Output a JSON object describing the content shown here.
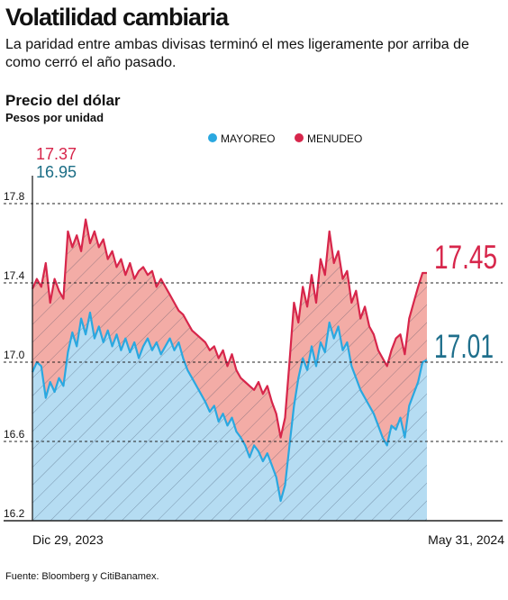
{
  "header": {
    "title": "Volatilidad cambiaria",
    "subtitle": "La paridad entre ambas divisas terminó el mes ligeramente por arriba de como cerró el año pasado."
  },
  "chart_header": {
    "title": "Precio del dólar",
    "subtitle": "Pesos por unidad"
  },
  "source": "Fuente: Bloomberg y CitiBanamex.",
  "colors": {
    "mayoreo": "#2aa8e0",
    "mayoreo_fill": "#b5dcf2",
    "menudeo": "#d7264b",
    "menudeo_fill": "#f3aca6",
    "start_mayoreo_label": "#1c6e86",
    "end_mayoreo_label": "#1f6f8c",
    "grid": "#222222"
  },
  "chart_data": {
    "type": "area",
    "xlabel": "",
    "ylabel": "",
    "ylim": [
      16.2,
      17.85
    ],
    "yticks": [
      "17.8",
      "17.4",
      "17.0",
      "16.6",
      "16.2"
    ],
    "ytick_values": [
      17.8,
      17.4,
      17.0,
      16.6,
      16.2
    ],
    "grid": "horizontal dashed",
    "legend_position": "top-center",
    "x_start_label": "Dic 29, 2023",
    "x_end_label": "May 31, 2024",
    "start_labels": {
      "menudeo": "17.37",
      "mayoreo": "16.95"
    },
    "end_labels": {
      "menudeo": "17.45",
      "mayoreo": "17.01"
    },
    "series": [
      {
        "name": "MAYOREO",
        "values": [
          16.95,
          17.0,
          16.98,
          16.82,
          16.9,
          16.85,
          16.92,
          16.88,
          17.05,
          17.15,
          17.08,
          17.22,
          17.14,
          17.25,
          17.12,
          17.18,
          17.1,
          17.16,
          17.08,
          17.14,
          17.06,
          17.12,
          17.05,
          17.1,
          17.02,
          17.08,
          17.12,
          17.06,
          17.1,
          17.04,
          17.08,
          17.12,
          17.06,
          17.1,
          17.02,
          16.96,
          16.92,
          16.88,
          16.84,
          16.8,
          16.75,
          16.78,
          16.7,
          16.74,
          16.68,
          16.72,
          16.65,
          16.62,
          16.58,
          16.52,
          16.58,
          16.55,
          16.5,
          16.54,
          16.48,
          16.42,
          16.3,
          16.38,
          16.58,
          16.78,
          16.92,
          17.02,
          16.96,
          17.08,
          16.98,
          17.1,
          17.05,
          17.2,
          17.12,
          17.18,
          17.06,
          17.1,
          16.98,
          16.92,
          16.86,
          16.82,
          16.78,
          16.74,
          16.68,
          16.62,
          16.58,
          16.68,
          16.66,
          16.72,
          16.62,
          16.78,
          16.84,
          16.9,
          17.0,
          17.01
        ]
      },
      {
        "name": "MENUDEO",
        "values": [
          17.37,
          17.42,
          17.38,
          17.5,
          17.3,
          17.42,
          17.36,
          17.32,
          17.66,
          17.58,
          17.64,
          17.56,
          17.72,
          17.6,
          17.66,
          17.58,
          17.62,
          17.52,
          17.56,
          17.48,
          17.52,
          17.44,
          17.5,
          17.42,
          17.46,
          17.48,
          17.44,
          17.46,
          17.38,
          17.42,
          17.38,
          17.34,
          17.3,
          17.26,
          17.24,
          17.2,
          17.16,
          17.14,
          17.12,
          17.1,
          17.06,
          17.08,
          17.02,
          17.06,
          16.98,
          17.04,
          16.96,
          16.92,
          16.9,
          16.88,
          16.86,
          16.9,
          16.84,
          16.88,
          16.8,
          16.74,
          16.62,
          16.72,
          17.0,
          17.3,
          17.2,
          17.38,
          17.28,
          17.44,
          17.3,
          17.52,
          17.44,
          17.66,
          17.5,
          17.56,
          17.42,
          17.46,
          17.3,
          17.36,
          17.22,
          17.28,
          17.18,
          17.14,
          17.06,
          17.02,
          16.98,
          17.06,
          17.12,
          17.14,
          17.04,
          17.22,
          17.3,
          17.38,
          17.45,
          17.45
        ]
      }
    ]
  }
}
